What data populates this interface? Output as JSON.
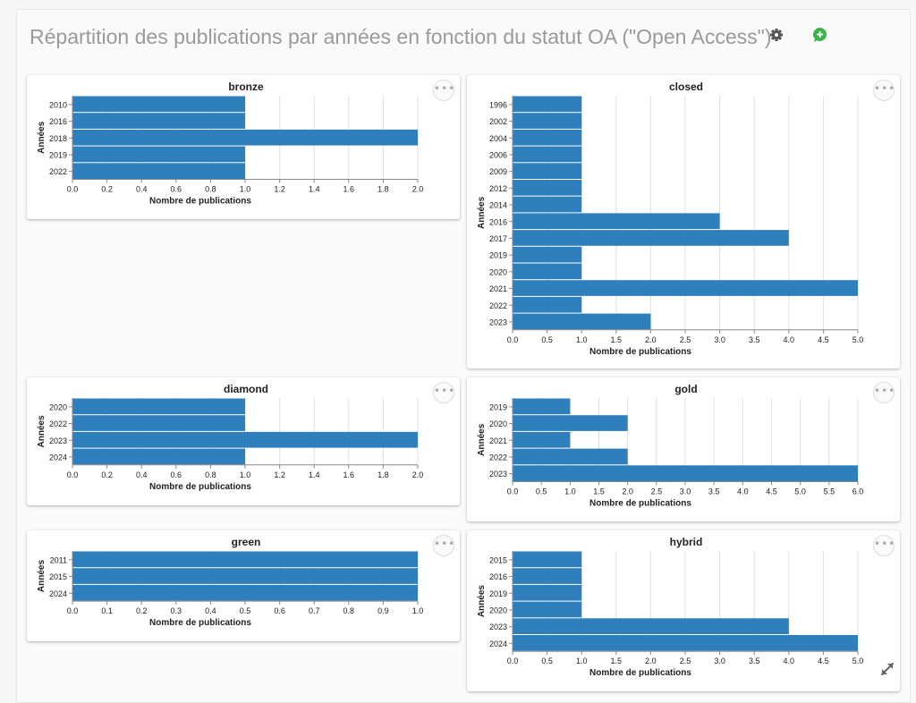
{
  "header": {
    "title": "Répartition des publications par années en fonction du statut OA (\"Open Access\")"
  },
  "icons": {
    "settings": "gear-icon",
    "add": "add-comment-icon",
    "more": "more-options-icon",
    "expand": "expand-icon"
  },
  "colors": {
    "bar": "#2f7fbd",
    "grid": "#e0e0e0",
    "axis": "#888888",
    "title": "#9a9a9a",
    "add_icon": "#3bb54a",
    "settings_icon": "#555555"
  },
  "chart_data": [
    {
      "id": "bronze",
      "type": "bar",
      "orientation": "horizontal",
      "title": "bronze",
      "xlabel": "Nombre de publications",
      "ylabel": "Années",
      "categories": [
        "2010",
        "2016",
        "2018",
        "2019",
        "2022"
      ],
      "values": [
        1,
        1,
        2,
        1,
        1
      ],
      "xlim": [
        0,
        2
      ],
      "xticks": [
        "0.0",
        "0.2",
        "0.4",
        "0.6",
        "0.8",
        "1.0",
        "1.2",
        "1.4",
        "1.6",
        "1.8",
        "2.0"
      ],
      "grid": true
    },
    {
      "id": "closed",
      "type": "bar",
      "orientation": "horizontal",
      "title": "closed",
      "xlabel": "Nombre de publications",
      "ylabel": "Années",
      "categories": [
        "1996",
        "2002",
        "2004",
        "2006",
        "2009",
        "2012",
        "2014",
        "2016",
        "2017",
        "2019",
        "2020",
        "2021",
        "2022",
        "2023"
      ],
      "values": [
        1,
        1,
        1,
        1,
        1,
        1,
        1,
        3,
        4,
        1,
        1,
        5,
        1,
        2
      ],
      "xlim": [
        0,
        5
      ],
      "xticks": [
        "0.0",
        "0.5",
        "1.0",
        "1.5",
        "2.0",
        "2.5",
        "3.0",
        "3.5",
        "4.0",
        "4.5",
        "5.0"
      ],
      "grid": true
    },
    {
      "id": "diamond",
      "type": "bar",
      "orientation": "horizontal",
      "title": "diamond",
      "xlabel": "Nombre de publications",
      "ylabel": "Années",
      "categories": [
        "2020",
        "2022",
        "2023",
        "2024"
      ],
      "values": [
        1,
        1,
        2,
        1
      ],
      "xlim": [
        0,
        2
      ],
      "xticks": [
        "0.0",
        "0.2",
        "0.4",
        "0.6",
        "0.8",
        "1.0",
        "1.2",
        "1.4",
        "1.6",
        "1.8",
        "2.0"
      ],
      "grid": true
    },
    {
      "id": "gold",
      "type": "bar",
      "orientation": "horizontal",
      "title": "gold",
      "xlabel": "Nombre de publications",
      "ylabel": "Années",
      "categories": [
        "2019",
        "2020",
        "2021",
        "2022",
        "2023"
      ],
      "values": [
        1,
        2,
        1,
        2,
        6
      ],
      "xlim": [
        0,
        6
      ],
      "xticks": [
        "0.0",
        "0.5",
        "1.0",
        "1.5",
        "2.0",
        "2.5",
        "3.0",
        "3.5",
        "4.0",
        "4.5",
        "5.0",
        "5.5",
        "6.0"
      ],
      "grid": true
    },
    {
      "id": "green",
      "type": "bar",
      "orientation": "horizontal",
      "title": "green",
      "xlabel": "Nombre de publications",
      "ylabel": "Années",
      "categories": [
        "2011",
        "2015",
        "2024"
      ],
      "values": [
        1,
        1,
        1
      ],
      "xlim": [
        0,
        1
      ],
      "xticks": [
        "0.0",
        "0.1",
        "0.2",
        "0.3",
        "0.4",
        "0.5",
        "0.6",
        "0.7",
        "0.8",
        "0.9",
        "1.0"
      ],
      "grid": true
    },
    {
      "id": "hybrid",
      "type": "bar",
      "orientation": "horizontal",
      "title": "hybrid",
      "xlabel": "Nombre de publications",
      "ylabel": "Années",
      "categories": [
        "2015",
        "2016",
        "2019",
        "2020",
        "2023",
        "2024"
      ],
      "values": [
        1,
        1,
        1,
        1,
        4,
        5
      ],
      "xlim": [
        0,
        5
      ],
      "xticks": [
        "0.0",
        "0.5",
        "1.0",
        "1.5",
        "2.0",
        "2.5",
        "3.0",
        "3.5",
        "4.0",
        "4.5",
        "5.0"
      ],
      "grid": true
    }
  ]
}
